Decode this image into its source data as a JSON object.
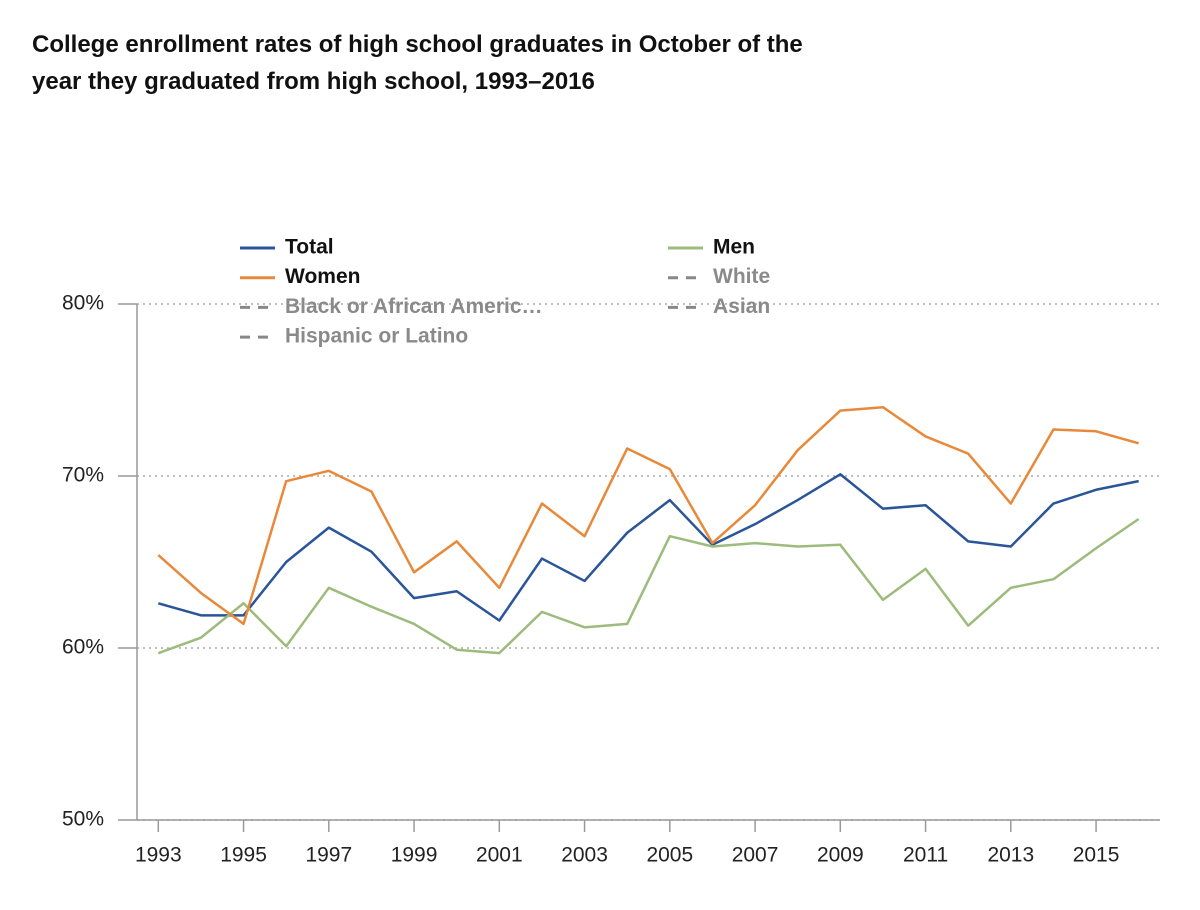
{
  "chart_data": {
    "type": "line",
    "title": "College enrollment rates of high school graduates in October of the year they graduated from high school, 1993–2016",
    "x": [
      1993,
      1994,
      1995,
      1996,
      1997,
      1998,
      1999,
      2000,
      2001,
      2002,
      2003,
      2004,
      2005,
      2006,
      2007,
      2008,
      2009,
      2010,
      2011,
      2012,
      2013,
      2014,
      2015,
      2016
    ],
    "series": [
      {
        "name": "Total",
        "color": "#2a5599",
        "values": [
          62.6,
          61.9,
          61.9,
          65.0,
          67.0,
          65.6,
          62.9,
          63.3,
          61.6,
          65.2,
          63.9,
          66.7,
          68.6,
          66.0,
          67.2,
          68.6,
          70.1,
          68.1,
          68.3,
          66.2,
          65.9,
          68.4,
          69.2,
          69.7
        ]
      },
      {
        "name": "Men",
        "color": "#9dbb7c",
        "values": [
          59.7,
          60.6,
          62.6,
          60.1,
          63.5,
          62.4,
          61.4,
          59.9,
          59.7,
          62.1,
          61.2,
          61.4,
          66.5,
          65.9,
          66.1,
          65.9,
          66.0,
          62.8,
          64.6,
          61.3,
          63.5,
          64.0,
          65.8,
          67.5
        ]
      },
      {
        "name": "Women",
        "color": "#e8893a",
        "values": [
          65.4,
          63.2,
          61.4,
          69.7,
          70.3,
          69.1,
          64.4,
          66.2,
          63.5,
          68.4,
          66.5,
          71.6,
          70.4,
          66.1,
          68.3,
          71.5,
          73.8,
          74.0,
          72.3,
          71.3,
          68.4,
          72.7,
          72.6,
          71.9
        ]
      }
    ],
    "hidden_series": [
      {
        "name": "White",
        "color": "#888888"
      },
      {
        "name": "Black or African Americ…",
        "color": "#888888"
      },
      {
        "name": "Asian",
        "color": "#888888"
      },
      {
        "name": "Hispanic or Latino",
        "color": "#888888"
      }
    ],
    "xlim": [
      1992.5,
      2016.5
    ],
    "xticks": [
      1993,
      1995,
      1997,
      1999,
      2001,
      2003,
      2005,
      2007,
      2009,
      2011,
      2013,
      2015
    ],
    "ylim": [
      50,
      80
    ],
    "yticks": [
      {
        "value": 50,
        "label": "50%"
      },
      {
        "value": 60,
        "label": "60%"
      },
      {
        "value": 70,
        "label": "70%"
      },
      {
        "value": 80,
        "label": "80%"
      }
    ],
    "grid": true
  }
}
